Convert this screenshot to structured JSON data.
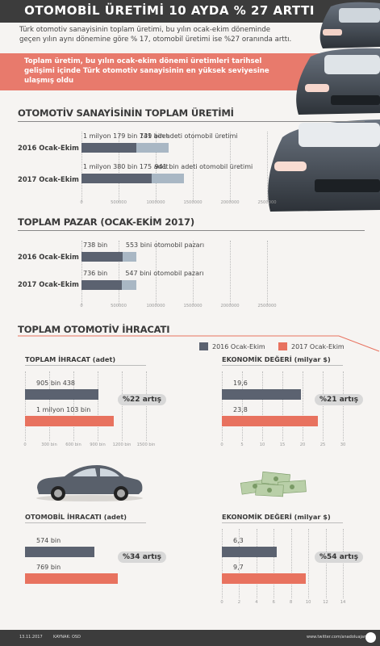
{
  "header": {
    "title": "OTOMOBİL ÜRETİMİ 10 AYDA % 27 ARTTI",
    "intro": "Türk otomotiv sanayisinin toplam üretimi, bu yılın ocak-ekim döneminde geçen yılın aynı dönemine göre % 17, otomobil üretimi ise %27 oranında arttı.",
    "highlight": "Toplam üretim, bu yılın ocak-ekim dönemi üretimleri tarihsel gelişimi içinde Türk otomotiv sanayisinin en yüksek seviyesine ulaşmış oldu"
  },
  "colors": {
    "dark": "#5b6270",
    "light": "#a9b7c4",
    "accent": "#e8725f",
    "panel": "#3c3c3c"
  },
  "chart_data": [
    {
      "type": "bar",
      "title": "OTOMOTİV SANAYİSİNİN TOPLAM ÜRETİMİ",
      "categories": [
        "2016 Ocak-Ekim",
        "2017 Ocak-Ekim"
      ],
      "series": [
        {
          "name": "",
          "values": [
            1179141,
            1380175
          ],
          "labels": [
            "1 milyon 179 bin 141 adet",
            "1 milyon 380 bin 175 adet"
          ]
        },
        {
          "name": "",
          "values": [
            739000,
            941000
          ],
          "labels": [
            "739 bin adeti otomobil üretimi",
            "941 bin adeti otomobil üretimi"
          ]
        }
      ],
      "ticks": [
        "0",
        "500000",
        "1000000",
        "1500000",
        "2000000",
        "2500000"
      ],
      "xlim": [
        0,
        2500000
      ]
    },
    {
      "type": "bar",
      "title": "TOPLAM PAZAR (OCAK-EKİM 2017)",
      "categories": [
        "2016 Ocak-Ekim",
        "2017 Ocak-Ekim"
      ],
      "series": [
        {
          "name": "",
          "values": [
            738000,
            736000
          ],
          "labels": [
            "738 bin",
            "736 bin"
          ]
        },
        {
          "name": "",
          "values": [
            553000,
            547000
          ],
          "labels": [
            "553 bini otomobil pazarı",
            "547 bini otomobil pazarı"
          ]
        }
      ],
      "ticks": [
        "0",
        "500000",
        "1000000",
        "1500000",
        "2000000",
        "2500000"
      ],
      "xlim": [
        0,
        2500000
      ]
    },
    {
      "type": "bar",
      "title": "TOPLAM OTOMOTİV İHRACATI",
      "panels": [
        {
          "subtitle": "TOPLAM İHRACAT (adet)",
          "values": [
            905438,
            1103000
          ],
          "labels": [
            "905 bin 438",
            "1 milyon 103 bin"
          ],
          "change": "%22 artış",
          "ticks": [
            "0",
            "300 bin",
            "600 bin",
            "900 bin",
            "1200 bin",
            "1500 bin"
          ],
          "xlim": [
            0,
            1500000
          ]
        },
        {
          "subtitle": "EKONOMİK DEĞERİ (milyar $)",
          "values": [
            19.6,
            23.8
          ],
          "labels": [
            "19,6",
            "23,8"
          ],
          "change": "%21 artış",
          "ticks": [
            "0",
            "5",
            "10",
            "15",
            "20",
            "25",
            "30"
          ],
          "xlim": [
            0,
            30
          ]
        },
        {
          "subtitle": "OTOMOBİL İHRACATI (adet)",
          "values": [
            574000,
            769000
          ],
          "labels": [
            "574 bin",
            "769 bin"
          ],
          "change": "%34 artış",
          "ticks": [],
          "xlim": [
            0,
            1000000
          ]
        },
        {
          "subtitle": "EKONOMİK DEĞERİ (milyar $)",
          "values": [
            6.3,
            9.7
          ],
          "labels": [
            "6,3",
            "9,7"
          ],
          "change": "%54 artış",
          "ticks": [
            "0",
            "2",
            "4",
            "6",
            "8",
            "10",
            "12",
            "14"
          ],
          "xlim": [
            0,
            14
          ]
        }
      ],
      "legend": [
        "2016 Ocak-Ekim",
        "2017 Ocak-Ekim"
      ]
    }
  ],
  "footer": {
    "date": "13.11.2017",
    "source": "KAYNAK: OSD",
    "link": "www.twitter.com/anadoluajansi"
  }
}
